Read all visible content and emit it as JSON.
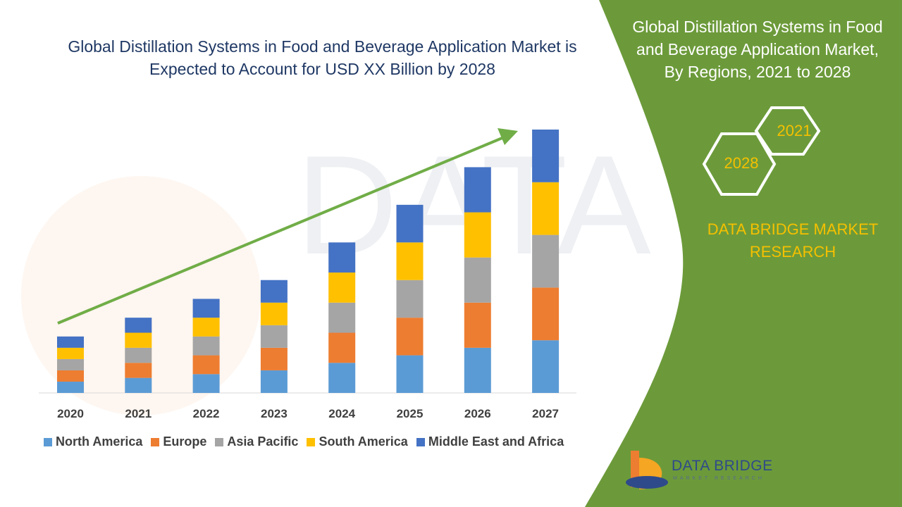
{
  "title_line1": "Global Distillation Systems in Food and Beverage Application Market is",
  "title_line2": "Expected to Account for  USD XX Billion by 2028",
  "panel": {
    "title_line1": "Global Distillation Systems in Food",
    "title_line2": "and Beverage Application Market,",
    "title_line3": "By Regions, 2021 to 2028",
    "hex_year_top": "2021",
    "hex_year_bottom": "2028",
    "brand_line1": "DATA BRIDGE MARKET",
    "brand_line2": "RESEARCH",
    "panel_color": "#6c9a3a"
  },
  "watermark_text": "DATA BRIDGE",
  "logo": {
    "name": "DATA BRIDGE",
    "sub": "MARKET RESEARCH"
  },
  "chart_data": {
    "type": "bar",
    "stacked": true,
    "categories": [
      "2020",
      "2021",
      "2022",
      "2023",
      "2024",
      "2025",
      "2026",
      "2027"
    ],
    "series": [
      {
        "name": "North America",
        "color": "#5b9bd5",
        "values": [
          3,
          4,
          5,
          6,
          8,
          10,
          12,
          14
        ]
      },
      {
        "name": "Europe",
        "color": "#ed7d31",
        "values": [
          3,
          4,
          5,
          6,
          8,
          10,
          12,
          14
        ]
      },
      {
        "name": "Asia Pacific",
        "color": "#a5a5a5",
        "values": [
          3,
          4,
          5,
          6,
          8,
          10,
          12,
          14
        ]
      },
      {
        "name": "South America",
        "color": "#ffc000",
        "values": [
          3,
          4,
          5,
          6,
          8,
          10,
          12,
          14
        ]
      },
      {
        "name": "Middle East and Africa",
        "color": "#4472c4",
        "values": [
          3,
          4,
          5,
          6,
          8,
          10,
          12,
          14
        ]
      }
    ],
    "ylim": [
      0,
      70
    ],
    "legend_position": "bottom",
    "grid": false,
    "trend_arrow_color": "#70ad47"
  }
}
